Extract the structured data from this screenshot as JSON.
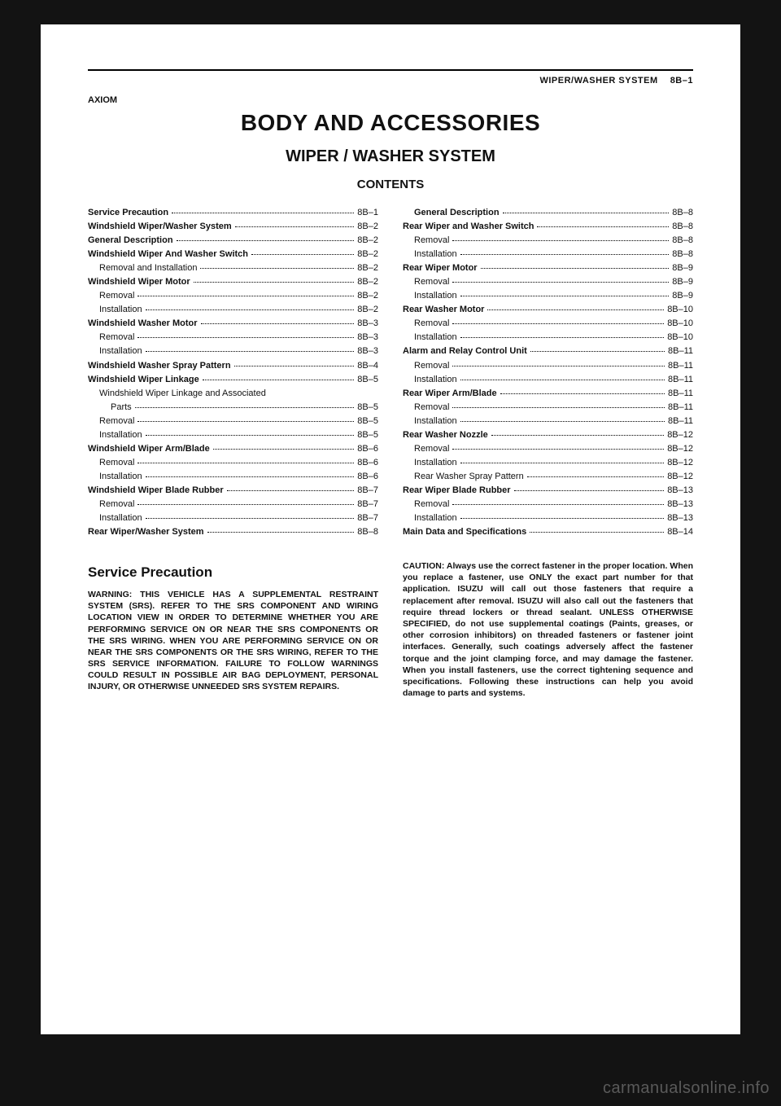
{
  "header": {
    "running_head": "WIPER/WASHER SYSTEM  8B–1",
    "model": "AXIOM"
  },
  "titles": {
    "main": "BODY AND ACCESSORIES",
    "section": "WIPER / WASHER SYSTEM",
    "contents": "CONTENTS"
  },
  "toc_left": [
    {
      "label": "Service Precaution",
      "page": "8B–1",
      "bold": true,
      "indent": 0
    },
    {
      "label": "Windshield Wiper/Washer System",
      "page": "8B–2",
      "bold": true,
      "indent": 0
    },
    {
      "label": "General Description",
      "page": "8B–2",
      "bold": true,
      "indent": 0
    },
    {
      "label": "Windshield Wiper And Washer Switch",
      "page": "8B–2",
      "bold": true,
      "indent": 0
    },
    {
      "label": "Removal and Installation",
      "page": "8B–2",
      "bold": false,
      "indent": 1
    },
    {
      "label": "Windshield Wiper Motor",
      "page": "8B–2",
      "bold": true,
      "indent": 0
    },
    {
      "label": "Removal",
      "page": "8B–2",
      "bold": false,
      "indent": 1
    },
    {
      "label": "Installation",
      "page": "8B–2",
      "bold": false,
      "indent": 1
    },
    {
      "label": "Windshield Washer Motor",
      "page": "8B–3",
      "bold": true,
      "indent": 0
    },
    {
      "label": "Removal",
      "page": "8B–3",
      "bold": false,
      "indent": 1
    },
    {
      "label": "Installation",
      "page": "8B–3",
      "bold": false,
      "indent": 1
    },
    {
      "label": "Windshield Washer Spray Pattern",
      "page": "8B–4",
      "bold": true,
      "indent": 0
    },
    {
      "label": "Windshield Wiper Linkage",
      "page": "8B–5",
      "bold": true,
      "indent": 0
    },
    {
      "label": "Windshield Wiper Linkage and Associated",
      "page": "",
      "bold": false,
      "indent": 1,
      "noleader": true
    },
    {
      "label": "Parts",
      "page": "8B–5",
      "bold": false,
      "indent": 2
    },
    {
      "label": "Removal",
      "page": "8B–5",
      "bold": false,
      "indent": 1
    },
    {
      "label": "Installation",
      "page": "8B–5",
      "bold": false,
      "indent": 1
    },
    {
      "label": "Windshield Wiper Arm/Blade",
      "page": "8B–6",
      "bold": true,
      "indent": 0
    },
    {
      "label": "Removal",
      "page": "8B–6",
      "bold": false,
      "indent": 1
    },
    {
      "label": "Installation",
      "page": "8B–6",
      "bold": false,
      "indent": 1
    },
    {
      "label": "Windshield Wiper Blade Rubber",
      "page": "8B–7",
      "bold": true,
      "indent": 0
    },
    {
      "label": "Removal",
      "page": "8B–7",
      "bold": false,
      "indent": 1
    },
    {
      "label": "Installation",
      "page": "8B–7",
      "bold": false,
      "indent": 1
    },
    {
      "label": "Rear Wiper/Washer System",
      "page": "8B–8",
      "bold": true,
      "indent": 0
    }
  ],
  "toc_right": [
    {
      "label": "General Description",
      "page": "8B–8",
      "bold": true,
      "indent": 1
    },
    {
      "label": "Rear Wiper and Washer Switch",
      "page": "8B–8",
      "bold": true,
      "indent": 0
    },
    {
      "label": "Removal",
      "page": "8B–8",
      "bold": false,
      "indent": 1
    },
    {
      "label": "Installation",
      "page": "8B–8",
      "bold": false,
      "indent": 1
    },
    {
      "label": "Rear Wiper Motor",
      "page": "8B–9",
      "bold": true,
      "indent": 0
    },
    {
      "label": "Removal",
      "page": "8B–9",
      "bold": false,
      "indent": 1
    },
    {
      "label": "Installation",
      "page": "8B–9",
      "bold": false,
      "indent": 1
    },
    {
      "label": "Rear Washer Motor",
      "page": "8B–10",
      "bold": true,
      "indent": 0
    },
    {
      "label": "Removal",
      "page": "8B–10",
      "bold": false,
      "indent": 1
    },
    {
      "label": "Installation",
      "page": "8B–10",
      "bold": false,
      "indent": 1
    },
    {
      "label": "Alarm and Relay Control Unit",
      "page": "8B–11",
      "bold": true,
      "indent": 0
    },
    {
      "label": "Removal",
      "page": "8B–11",
      "bold": false,
      "indent": 1
    },
    {
      "label": "Installation",
      "page": "8B–11",
      "bold": false,
      "indent": 1
    },
    {
      "label": "Rear Wiper Arm/Blade",
      "page": "8B–11",
      "bold": true,
      "indent": 0
    },
    {
      "label": "Removal",
      "page": "8B–11",
      "bold": false,
      "indent": 1
    },
    {
      "label": "Installation",
      "page": "8B–11",
      "bold": false,
      "indent": 1
    },
    {
      "label": "Rear Washer Nozzle",
      "page": "8B–12",
      "bold": true,
      "indent": 0
    },
    {
      "label": "Removal",
      "page": "8B–12",
      "bold": false,
      "indent": 1
    },
    {
      "label": "Installation",
      "page": "8B–12",
      "bold": false,
      "indent": 1
    },
    {
      "label": "Rear Washer Spray Pattern",
      "page": "8B–12",
      "bold": false,
      "indent": 1
    },
    {
      "label": "Rear Wiper Blade Rubber",
      "page": "8B–13",
      "bold": true,
      "indent": 0
    },
    {
      "label": "Removal",
      "page": "8B–13",
      "bold": false,
      "indent": 1
    },
    {
      "label": "Installation",
      "page": "8B–13",
      "bold": false,
      "indent": 1
    },
    {
      "label": "Main Data and Specifications",
      "page": "8B–14",
      "bold": true,
      "indent": 0
    }
  ],
  "service_precaution": {
    "heading": "Service Precaution",
    "warning": "WARNING: THIS VEHICLE HAS A SUPPLEMENTAL RESTRAINT SYSTEM (SRS). REFER TO THE SRS COMPONENT AND WIRING LOCATION VIEW IN ORDER TO DETERMINE WHETHER YOU ARE PERFORMING SERVICE ON OR NEAR THE SRS COMPONENTS OR THE SRS WIRING. WHEN YOU ARE PERFORMING SERVICE ON OR NEAR THE SRS COMPONENTS OR THE SRS WIRING, REFER TO THE SRS SERVICE INFORMATION. FAILURE TO FOLLOW WARNINGS COULD RESULT IN POSSIBLE AIR BAG DEPLOYMENT, PERSONAL INJURY, OR OTHERWISE UNNEEDED SRS SYSTEM REPAIRS."
  },
  "caution": {
    "lead": "CAUTION:",
    "body": " Always use the correct fastener in the proper location. When you replace a fastener, use ONLY the exact part number for that application. ISUZU will call out those fasteners that require a replacement after removal. ISUZU will also call out the fasteners that require thread lockers or thread sealant. UNLESS OTHERWISE SPECIFIED, do not use supplemental coatings (Paints, greases, or other corrosion inhibitors) on threaded fasteners or fastener joint interfaces. Generally, such coatings adversely affect the fastener torque and the joint clamping force, and may damage the fastener. When you install fasteners, use the correct tightening sequence and specifications. Following these instructions can help you avoid damage to parts and systems."
  },
  "watermark": "carmanualsonline.info"
}
